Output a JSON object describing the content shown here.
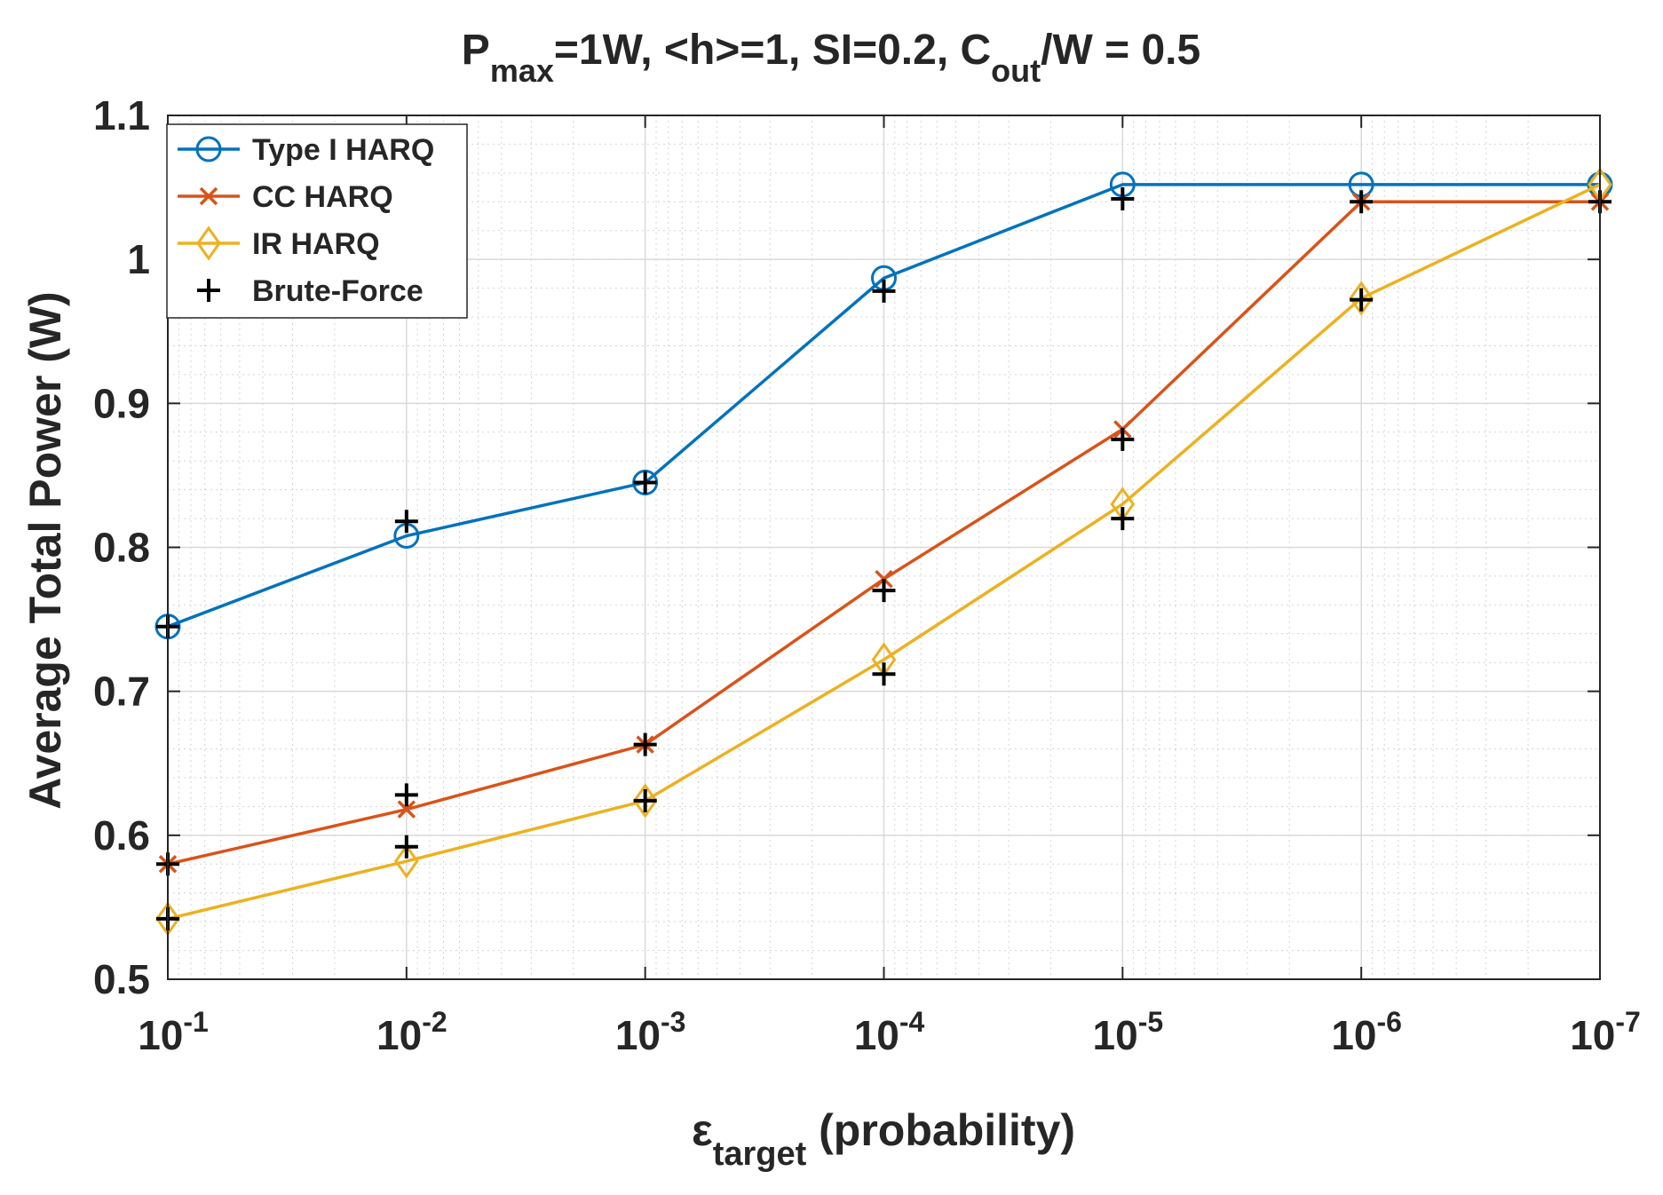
{
  "chart_data": {
    "type": "line",
    "title": {
      "base_p": "P",
      "sub_max": "max",
      "mid": "=1W, <h>=1, SI=0.2, C",
      "sub_out": "out",
      "tail": "/W = 0.5"
    },
    "xlabel": {
      "symbol": "ε",
      "sub": "target",
      "text": " (probability)"
    },
    "ylabel": "Average Total Power (W)",
    "x_scale": "log-reversed",
    "x_exponents": [
      -1,
      -2,
      -3,
      -4,
      -5,
      -6,
      -7
    ],
    "x_ticks": [
      {
        "base": "10",
        "exp": "-1"
      },
      {
        "base": "10",
        "exp": "-2"
      },
      {
        "base": "10",
        "exp": "-3"
      },
      {
        "base": "10",
        "exp": "-4"
      },
      {
        "base": "10",
        "exp": "-5"
      },
      {
        "base": "10",
        "exp": "-6"
      },
      {
        "base": "10",
        "exp": "-7"
      }
    ],
    "ylim": [
      0.5,
      1.1
    ],
    "y_ticks": [
      0.5,
      0.6,
      0.7,
      0.8,
      0.9,
      1.0,
      1.1
    ],
    "y_tick_labels": [
      "0.5",
      "0.6",
      "0.7",
      "0.8",
      "0.9",
      "1",
      "1.1"
    ],
    "grid": true,
    "legend_position": "top-left",
    "series": [
      {
        "name": "Type I HARQ",
        "color": "#0072BD",
        "marker": "circle",
        "line": true,
        "values": [
          0.745,
          0.808,
          0.845,
          0.987,
          1.052,
          1.052,
          1.052
        ]
      },
      {
        "name": "CC HARQ",
        "color": "#D95319",
        "marker": "x",
        "line": true,
        "values": [
          0.58,
          0.618,
          0.663,
          0.778,
          0.882,
          1.04,
          1.04
        ]
      },
      {
        "name": "IR HARQ",
        "color": "#EDB120",
        "marker": "diamond",
        "line": true,
        "values": [
          0.542,
          0.582,
          0.624,
          0.722,
          0.83,
          0.973,
          1.052
        ]
      },
      {
        "name": "Brute-Force",
        "color": "#000000",
        "marker": "plus",
        "line": false,
        "points": [
          [
            -1,
            0.745
          ],
          [
            -2,
            0.818
          ],
          [
            -3,
            0.845
          ],
          [
            -4,
            0.978
          ],
          [
            -5,
            1.042
          ],
          [
            -6,
            1.04
          ],
          [
            -7,
            1.04
          ],
          [
            -1,
            0.58
          ],
          [
            -2,
            0.628
          ],
          [
            -3,
            0.663
          ],
          [
            -4,
            0.77
          ],
          [
            -5,
            0.875
          ],
          [
            -1,
            0.542
          ],
          [
            -2,
            0.592
          ],
          [
            -3,
            0.624
          ],
          [
            -4,
            0.712
          ],
          [
            -5,
            0.82
          ],
          [
            -6,
            0.972
          ]
        ]
      }
    ]
  }
}
